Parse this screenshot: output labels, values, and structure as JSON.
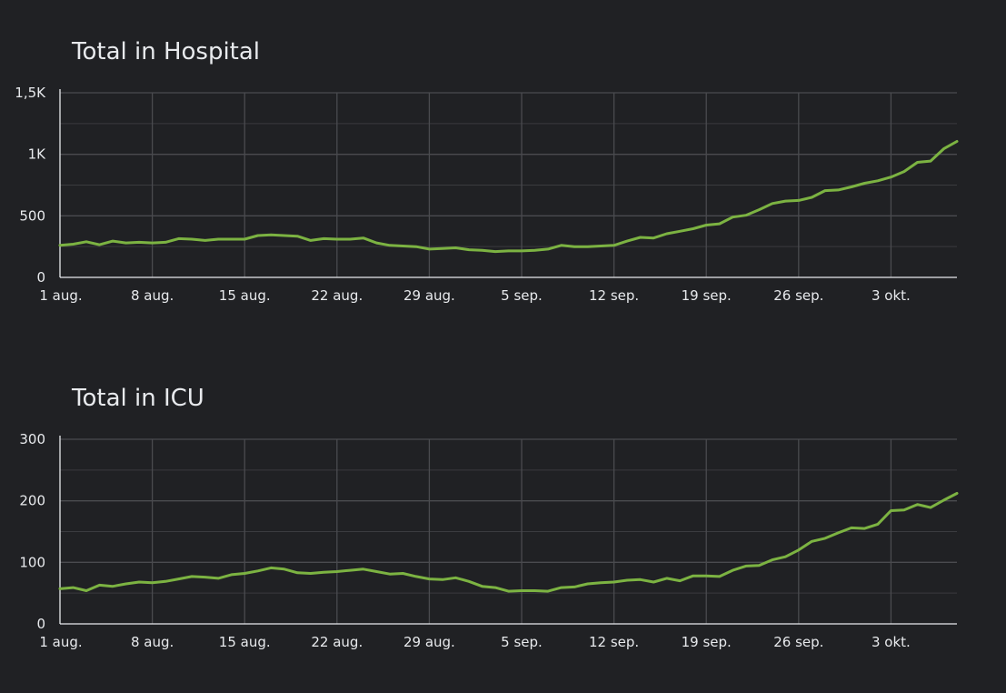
{
  "chart_data": [
    {
      "type": "line",
      "title": "Total in Hospital",
      "ylim": [
        0,
        1500
      ],
      "y_ticks": [
        0,
        500,
        1000,
        1500
      ],
      "y_tick_labels": [
        "0",
        "500",
        "1K",
        "1,5K"
      ],
      "x_tick_labels": [
        "1 aug.",
        "8 aug.",
        "15 aug.",
        "22 aug.",
        "29 aug.",
        "5 sep.",
        "12 sep.",
        "19 sep.",
        "26 sep.",
        "3 okt."
      ],
      "x_ticks": [
        "2020-08-01",
        "2020-08-08",
        "2020-08-15",
        "2020-08-22",
        "2020-08-29",
        "2020-09-05",
        "2020-09-12",
        "2020-09-19",
        "2020-09-26",
        "2020-10-03"
      ],
      "xlim": [
        "2020-08-01",
        "2020-10-08"
      ],
      "grid": true,
      "line_color": "#7cb342",
      "x": [
        "2020-08-01",
        "2020-08-02",
        "2020-08-03",
        "2020-08-04",
        "2020-08-05",
        "2020-08-06",
        "2020-08-07",
        "2020-08-08",
        "2020-08-09",
        "2020-08-10",
        "2020-08-11",
        "2020-08-12",
        "2020-08-13",
        "2020-08-14",
        "2020-08-15",
        "2020-08-16",
        "2020-08-17",
        "2020-08-18",
        "2020-08-19",
        "2020-08-20",
        "2020-08-21",
        "2020-08-22",
        "2020-08-23",
        "2020-08-24",
        "2020-08-25",
        "2020-08-26",
        "2020-08-27",
        "2020-08-28",
        "2020-08-29",
        "2020-08-30",
        "2020-08-31",
        "2020-09-01",
        "2020-09-02",
        "2020-09-03",
        "2020-09-04",
        "2020-09-05",
        "2020-09-06",
        "2020-09-07",
        "2020-09-08",
        "2020-09-09",
        "2020-09-10",
        "2020-09-11",
        "2020-09-12",
        "2020-09-13",
        "2020-09-14",
        "2020-09-15",
        "2020-09-16",
        "2020-09-17",
        "2020-09-18",
        "2020-09-19",
        "2020-09-20",
        "2020-09-21",
        "2020-09-22",
        "2020-09-23",
        "2020-09-24",
        "2020-09-25",
        "2020-09-26",
        "2020-09-27",
        "2020-09-28",
        "2020-09-29",
        "2020-09-30",
        "2020-10-01",
        "2020-10-02",
        "2020-10-03",
        "2020-10-04",
        "2020-10-05",
        "2020-10-06",
        "2020-10-07",
        "2020-10-08"
      ],
      "values": [
        260,
        270,
        290,
        265,
        295,
        280,
        285,
        280,
        285,
        315,
        310,
        300,
        310,
        310,
        310,
        340,
        345,
        340,
        335,
        300,
        315,
        310,
        310,
        320,
        280,
        260,
        255,
        250,
        230,
        235,
        240,
        225,
        220,
        210,
        215,
        215,
        220,
        230,
        260,
        250,
        250,
        255,
        260,
        295,
        325,
        320,
        355,
        375,
        395,
        425,
        435,
        490,
        505,
        550,
        600,
        620,
        625,
        650,
        705,
        710,
        735,
        765,
        785,
        815,
        860,
        935,
        945,
        1045,
        1105
      ]
    },
    {
      "type": "line",
      "title": "Total in ICU",
      "ylim": [
        0,
        300
      ],
      "y_ticks": [
        0,
        100,
        200,
        300
      ],
      "y_tick_labels": [
        "0",
        "100",
        "200",
        "300"
      ],
      "x_tick_labels": [
        "1 aug.",
        "8 aug.",
        "15 aug.",
        "22 aug.",
        "29 aug.",
        "5 sep.",
        "12 sep.",
        "19 sep.",
        "26 sep.",
        "3 okt."
      ],
      "x_ticks": [
        "2020-08-01",
        "2020-08-08",
        "2020-08-15",
        "2020-08-22",
        "2020-08-29",
        "2020-09-05",
        "2020-09-12",
        "2020-09-19",
        "2020-09-26",
        "2020-10-03"
      ],
      "xlim": [
        "2020-08-01",
        "2020-10-08"
      ],
      "grid": true,
      "line_color": "#7cb342",
      "x": [
        "2020-08-01",
        "2020-08-02",
        "2020-08-03",
        "2020-08-04",
        "2020-08-05",
        "2020-08-06",
        "2020-08-07",
        "2020-08-08",
        "2020-08-09",
        "2020-08-10",
        "2020-08-11",
        "2020-08-12",
        "2020-08-13",
        "2020-08-14",
        "2020-08-15",
        "2020-08-16",
        "2020-08-17",
        "2020-08-18",
        "2020-08-19",
        "2020-08-20",
        "2020-08-21",
        "2020-08-22",
        "2020-08-23",
        "2020-08-24",
        "2020-08-25",
        "2020-08-26",
        "2020-08-27",
        "2020-08-28",
        "2020-08-29",
        "2020-08-30",
        "2020-08-31",
        "2020-09-01",
        "2020-09-02",
        "2020-09-03",
        "2020-09-04",
        "2020-09-05",
        "2020-09-06",
        "2020-09-07",
        "2020-09-08",
        "2020-09-09",
        "2020-09-10",
        "2020-09-11",
        "2020-09-12",
        "2020-09-13",
        "2020-09-14",
        "2020-09-15",
        "2020-09-16",
        "2020-09-17",
        "2020-09-18",
        "2020-09-19",
        "2020-09-20",
        "2020-09-21",
        "2020-09-22",
        "2020-09-23",
        "2020-09-24",
        "2020-09-25",
        "2020-09-26",
        "2020-09-27",
        "2020-09-28",
        "2020-09-29",
        "2020-09-30",
        "2020-10-01",
        "2020-10-02",
        "2020-10-03",
        "2020-10-04",
        "2020-10-05",
        "2020-10-06",
        "2020-10-07",
        "2020-10-08"
      ],
      "values": [
        57,
        59,
        54,
        63,
        61,
        65,
        68,
        67,
        69,
        73,
        77,
        76,
        74,
        80,
        82,
        86,
        91,
        89,
        83,
        82,
        84,
        85,
        87,
        89,
        85,
        81,
        82,
        77,
        73,
        72,
        75,
        69,
        61,
        59,
        53,
        54,
        54,
        53,
        59,
        60,
        65,
        67,
        68,
        71,
        72,
        68,
        74,
        70,
        78,
        78,
        77,
        87,
        94,
        95,
        104,
        109,
        120,
        134,
        139,
        148,
        156,
        155,
        162,
        184,
        185,
        194,
        189,
        201,
        212
      ]
    }
  ]
}
